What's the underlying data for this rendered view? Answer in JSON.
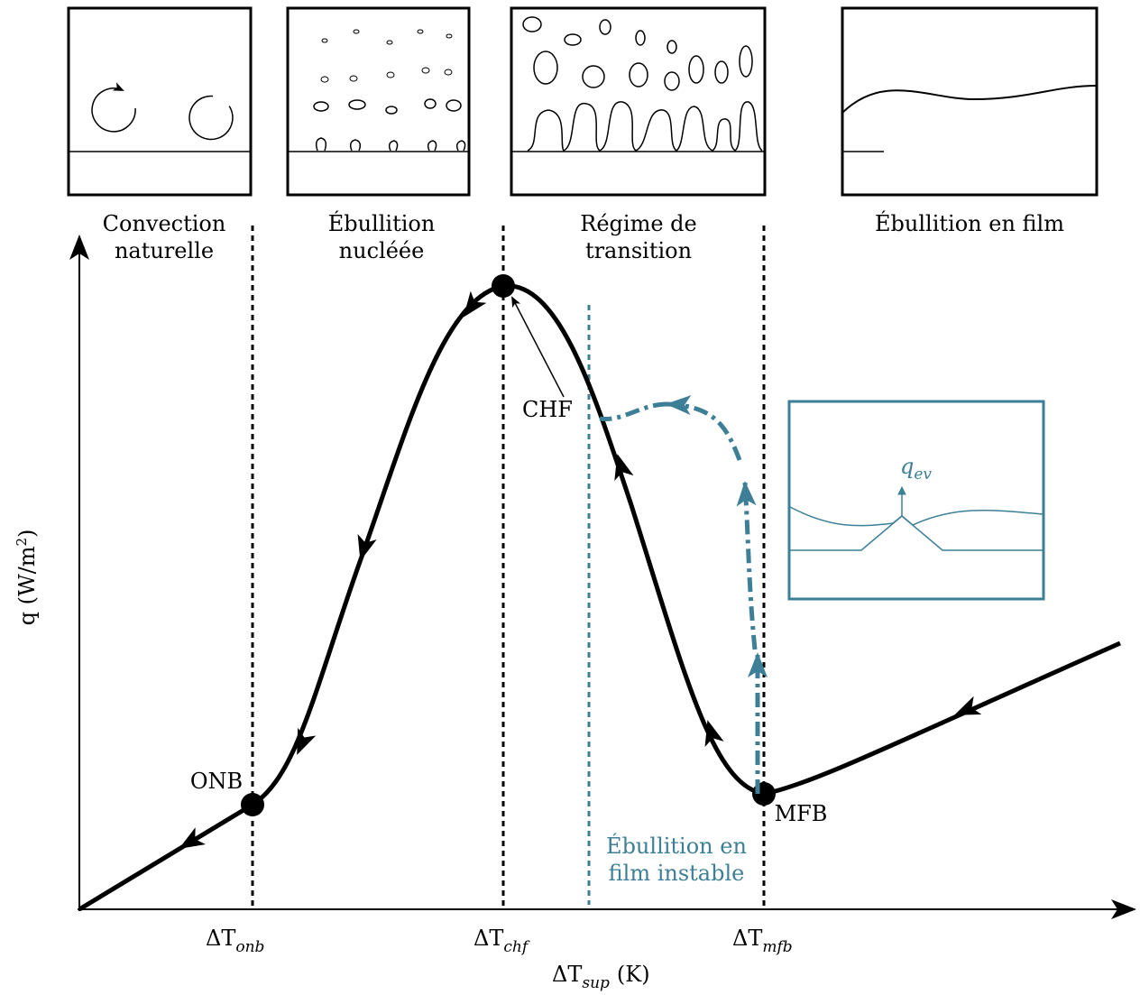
{
  "panels": [
    {
      "lines": [
        "Convection",
        "naturelle"
      ]
    },
    {
      "lines": [
        "Ébullition",
        "nucléée"
      ]
    },
    {
      "lines": [
        "Régime de",
        "transition"
      ]
    },
    {
      "lines": [
        "Ébullition en film"
      ]
    }
  ],
  "points": {
    "onb": "ONB",
    "chf": "CHF",
    "mfb": "MFB"
  },
  "unstable_label": [
    "Ébullition en",
    "film instable"
  ],
  "inset_label": {
    "base": "q",
    "sub": "ev"
  },
  "x_ticks": [
    {
      "base": "ΔT",
      "sub": "onb"
    },
    {
      "base": "ΔT",
      "sub": "chf"
    },
    {
      "base": "ΔT",
      "sub": "mfb"
    }
  ],
  "x_axis_label": {
    "base": "ΔT",
    "sub": "sup",
    "unit": "(K)"
  },
  "y_axis_label": {
    "base": "q (W/m",
    "sup": "2",
    "end": ")"
  }
}
